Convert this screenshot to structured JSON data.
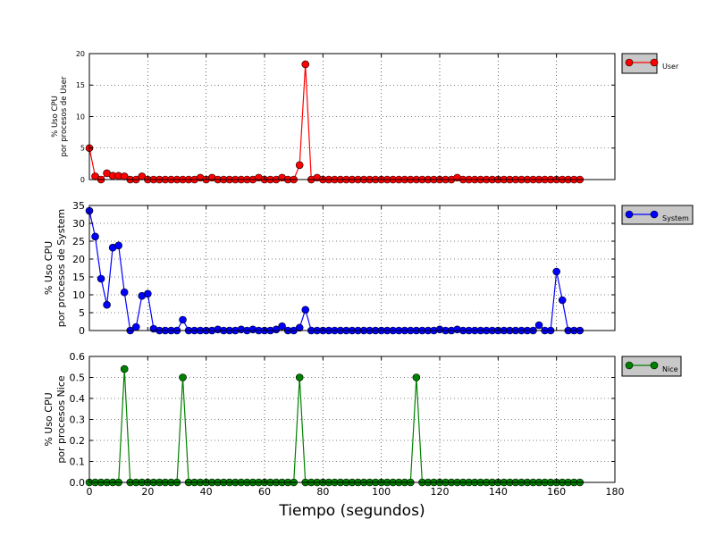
{
  "figure": {
    "xlabel": "Tiempo (segundos)"
  },
  "chart_data": [
    {
      "type": "line",
      "ylabel_lines": [
        "% Uso CPU",
        "por procesos de User"
      ],
      "legend": "User",
      "color": "#ff0000",
      "xlim": [
        0,
        180
      ],
      "ylim": [
        0,
        20
      ],
      "xticks": [
        0,
        20,
        40,
        60,
        80,
        100,
        120,
        140,
        160,
        180
      ],
      "yticks": [
        0,
        5,
        10,
        15,
        20
      ],
      "ytick_labels": [
        "0",
        "5",
        "10",
        "15",
        "20"
      ],
      "grid": true,
      "legend_placement": "outside-right",
      "x": [
        0,
        2,
        4,
        6,
        8,
        10,
        12,
        14,
        16,
        18,
        20,
        22,
        24,
        26,
        28,
        30,
        32,
        34,
        36,
        38,
        40,
        42,
        44,
        46,
        48,
        50,
        52,
        54,
        56,
        58,
        60,
        62,
        64,
        66,
        68,
        70,
        72,
        74,
        76,
        78,
        80,
        82,
        84,
        86,
        88,
        90,
        92,
        94,
        96,
        98,
        100,
        102,
        104,
        106,
        108,
        110,
        112,
        114,
        116,
        118,
        120,
        122,
        124,
        126,
        128,
        130,
        132,
        134,
        136,
        138,
        140,
        142,
        144,
        146,
        148,
        150,
        152,
        154,
        156,
        158,
        160,
        162,
        164,
        166,
        168
      ],
      "y": [
        5,
        0.5,
        0,
        1,
        0.6,
        0.6,
        0.5,
        0,
        0,
        0.5,
        0,
        0,
        0,
        0,
        0,
        0,
        0,
        0,
        0,
        0.3,
        0,
        0.3,
        0,
        0,
        0,
        0,
        0,
        0,
        0,
        0.3,
        0,
        0,
        0,
        0.3,
        0,
        0,
        2.3,
        18.3,
        0,
        0.3,
        0,
        0,
        0,
        0,
        0,
        0,
        0,
        0,
        0,
        0,
        0,
        0,
        0,
        0,
        0,
        0,
        0,
        0,
        0,
        0,
        0,
        0,
        0,
        0.3,
        0,
        0,
        0,
        0,
        0,
        0,
        0,
        0,
        0,
        0,
        0,
        0,
        0,
        0,
        0,
        0,
        0,
        0,
        0,
        0,
        0
      ]
    },
    {
      "type": "line",
      "ylabel_lines": [
        "% Uso CPU",
        "por procesos de System"
      ],
      "legend": "System",
      "color": "#0000ff",
      "xlim": [
        0,
        180
      ],
      "ylim": [
        0,
        35
      ],
      "xticks": [
        0,
        20,
        40,
        60,
        80,
        100,
        120,
        140,
        160,
        180
      ],
      "yticks": [
        0,
        5,
        10,
        15,
        20,
        25,
        30,
        35
      ],
      "ytick_labels": [
        "0",
        "5",
        "10",
        "15",
        "20",
        "25",
        "30",
        "35"
      ],
      "grid": true,
      "legend_placement": "outside-right",
      "x": [
        0,
        2,
        4,
        6,
        8,
        10,
        12,
        14,
        16,
        18,
        20,
        22,
        24,
        26,
        28,
        30,
        32,
        34,
        36,
        38,
        40,
        42,
        44,
        46,
        48,
        50,
        52,
        54,
        56,
        58,
        60,
        62,
        64,
        66,
        68,
        70,
        72,
        74,
        76,
        78,
        80,
        82,
        84,
        86,
        88,
        90,
        92,
        94,
        96,
        98,
        100,
        102,
        104,
        106,
        108,
        110,
        112,
        114,
        116,
        118,
        120,
        122,
        124,
        126,
        128,
        130,
        132,
        134,
        136,
        138,
        140,
        142,
        144,
        146,
        148,
        150,
        152,
        154,
        156,
        158,
        160,
        162,
        164,
        166,
        168
      ],
      "y": [
        33.5,
        26.3,
        14.5,
        7.2,
        23.2,
        23.8,
        10.7,
        0,
        1,
        9.7,
        10.3,
        0.5,
        0,
        0,
        0,
        0,
        3,
        0,
        0,
        0,
        0,
        0,
        0.3,
        0,
        0,
        0,
        0.3,
        0,
        0.3,
        0,
        0,
        0,
        0.3,
        1.2,
        0,
        0,
        0.8,
        5.8,
        0,
        0,
        0,
        0,
        0,
        0,
        0,
        0,
        0,
        0,
        0,
        0,
        0,
        0,
        0,
        0,
        0,
        0,
        0,
        0,
        0,
        0,
        0.3,
        0,
        0,
        0.3,
        0,
        0,
        0,
        0,
        0,
        0,
        0,
        0,
        0,
        0,
        0,
        0,
        0,
        1.5,
        0,
        0,
        16.5,
        8.5,
        0,
        0,
        0
      ]
    },
    {
      "type": "line",
      "ylabel_lines": [
        "% Uso CPU",
        "por procesos Nice"
      ],
      "legend": "Nice",
      "color": "#008000",
      "xlim": [
        0,
        180
      ],
      "ylim": [
        0,
        0.6
      ],
      "xticks": [
        0,
        20,
        40,
        60,
        80,
        100,
        120,
        140,
        160,
        180
      ],
      "yticks": [
        0,
        0.1,
        0.2,
        0.3,
        0.4,
        0.5,
        0.6
      ],
      "ytick_labels": [
        "0.0",
        "0.1",
        "0.2",
        "0.3",
        "0.4",
        "0.5",
        "0.6"
      ],
      "grid": true,
      "legend_placement": "outside-right",
      "x": [
        0,
        2,
        4,
        6,
        8,
        10,
        12,
        14,
        16,
        18,
        20,
        22,
        24,
        26,
        28,
        30,
        32,
        34,
        36,
        38,
        40,
        42,
        44,
        46,
        48,
        50,
        52,
        54,
        56,
        58,
        60,
        62,
        64,
        66,
        68,
        70,
        72,
        74,
        76,
        78,
        80,
        82,
        84,
        86,
        88,
        90,
        92,
        94,
        96,
        98,
        100,
        102,
        104,
        106,
        108,
        110,
        112,
        114,
        116,
        118,
        120,
        122,
        124,
        126,
        128,
        130,
        132,
        134,
        136,
        138,
        140,
        142,
        144,
        146,
        148,
        150,
        152,
        154,
        156,
        158,
        160,
        162,
        164,
        166,
        168
      ],
      "y": [
        0,
        0,
        0,
        0,
        0,
        0,
        0.54,
        0,
        0,
        0,
        0,
        0,
        0,
        0,
        0,
        0,
        0.5,
        0,
        0,
        0,
        0,
        0,
        0,
        0,
        0,
        0,
        0,
        0,
        0,
        0,
        0,
        0,
        0,
        0,
        0,
        0,
        0.5,
        0,
        0,
        0,
        0,
        0,
        0,
        0,
        0,
        0,
        0,
        0,
        0,
        0,
        0,
        0,
        0,
        0,
        0,
        0,
        0.5,
        0,
        0,
        0,
        0,
        0,
        0,
        0,
        0,
        0,
        0,
        0,
        0,
        0,
        0,
        0,
        0,
        0,
        0,
        0,
        0,
        0,
        0,
        0,
        0,
        0,
        0,
        0,
        0
      ]
    }
  ]
}
